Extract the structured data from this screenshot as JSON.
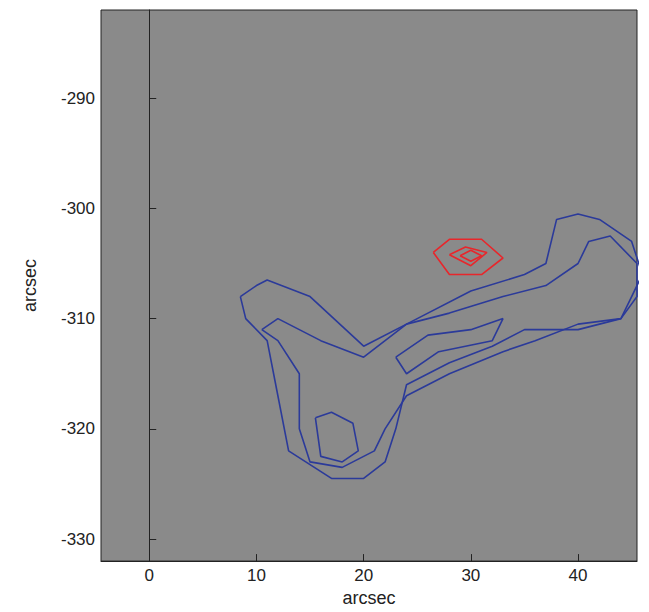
{
  "chart_data": {
    "type": "line",
    "x_label": "arcsec",
    "y_label": "arcsec",
    "xlim": [
      -4.5,
      45.5
    ],
    "ylim": [
      -332,
      -282
    ],
    "xticks": [
      0,
      10,
      20,
      30,
      40
    ],
    "yticks": [
      -330,
      -320,
      -310,
      -300,
      -290
    ],
    "grid": false,
    "series": [
      {
        "color": "#2b3a9a",
        "x": [
          8.5,
          10,
          11,
          15,
          20,
          25,
          30,
          35,
          37,
          38,
          40,
          42,
          45,
          46,
          45,
          44,
          40,
          35,
          32,
          28,
          24,
          23,
          22,
          20,
          17,
          13,
          12,
          11,
          9,
          8.5
        ],
        "y": [
          -308,
          -307,
          -306.5,
          -308,
          -312.5,
          -310,
          -307.5,
          -306,
          -305,
          -301,
          -300.5,
          -301,
          -303,
          -306,
          -308,
          -310,
          -311,
          -311,
          -312.5,
          -314,
          -316,
          -320,
          -323,
          -324.5,
          -324.5,
          -322,
          -317,
          -312,
          -310,
          -308
        ]
      },
      {
        "color": "#2b3a9a",
        "x": [
          10.5,
          12,
          14,
          14,
          15,
          18,
          21,
          22,
          24,
          28,
          33,
          36,
          40,
          44,
          45.5,
          45.5,
          43,
          41,
          40,
          37,
          33,
          28,
          24,
          20,
          16,
          12,
          10.5
        ],
        "y": [
          -311,
          -312,
          -315,
          -320,
          -323,
          -323.5,
          -322,
          -320,
          -317,
          -315,
          -313,
          -312,
          -310.5,
          -310,
          -308,
          -305,
          -302.5,
          -303,
          -305,
          -307,
          -308,
          -309.5,
          -310.5,
          -313.5,
          -312,
          -310,
          -311
        ]
      },
      {
        "color": "#2b3a9a",
        "x": [
          23,
          26,
          30,
          33,
          32,
          27,
          24,
          23
        ],
        "y": [
          -313.5,
          -311.5,
          -311,
          -310,
          -312,
          -313,
          -315,
          -313.5
        ]
      },
      {
        "color": "#2b3a9a",
        "x": [
          15.5,
          17,
          19,
          19.5,
          18,
          16,
          15.5
        ],
        "y": [
          -319,
          -318.5,
          -319.5,
          -322,
          -323,
          -322.5,
          -319
        ]
      },
      {
        "color": "#e8262b",
        "x": [
          26.5,
          28,
          31,
          33,
          31,
          28,
          26.5
        ],
        "y": [
          -304,
          -302.8,
          -302.8,
          -304.5,
          -306,
          -306,
          -304
        ]
      },
      {
        "color": "#e8262b",
        "x": [
          28,
          29.5,
          31.5,
          30,
          28
        ],
        "y": [
          -304.2,
          -303.5,
          -304,
          -305.2,
          -304.2
        ]
      },
      {
        "color": "#e8262b",
        "x": [
          29,
          30,
          31,
          30,
          29
        ],
        "y": [
          -304.3,
          -303.8,
          -304.3,
          -304.8,
          -304.3
        ]
      }
    ]
  }
}
